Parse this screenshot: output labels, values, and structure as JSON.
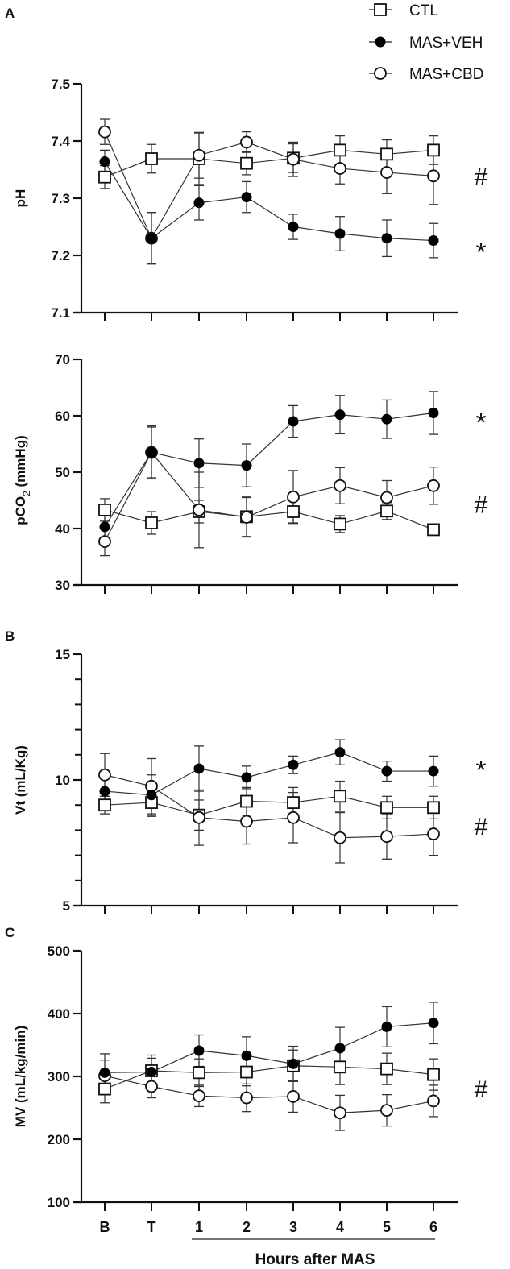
{
  "legend": [
    {
      "label": "CTL",
      "marker": "open-square"
    },
    {
      "label": "MAS+VEH",
      "marker": "filled-circle"
    },
    {
      "label": "MAS+CBD",
      "marker": "open-circle"
    }
  ],
  "panel_letters": [
    "A",
    "B",
    "C"
  ],
  "x_common": {
    "categories": [
      "B",
      "T",
      "1",
      "2",
      "3",
      "4",
      "5",
      "6"
    ],
    "xlabel": "Hours after MAS"
  },
  "chart_data": [
    {
      "type": "line",
      "panel": "A",
      "ylabel": "pH",
      "ylim": [
        7.1,
        7.5
      ],
      "yticks": [
        "7.1",
        "7.2",
        "7.3",
        "7.4",
        "7.5"
      ],
      "significance": [
        {
          "symbol": "#",
          "value": 7.34
        },
        {
          "symbol": "*",
          "value": 7.215
        }
      ],
      "series": [
        {
          "name": "CTL",
          "values": [
            7.337,
            7.369,
            7.369,
            7.361,
            7.37,
            7.384,
            7.377,
            7.384
          ],
          "error": [
            0.02,
            0.025,
            0.045,
            0.02,
            0.025,
            0.025,
            0.025,
            0.025
          ]
        },
        {
          "name": "MAS+VEH",
          "values": [
            7.364,
            7.23,
            7.292,
            7.302,
            7.25,
            7.238,
            7.23,
            7.226
          ],
          "error": [
            0.02,
            0.045,
            0.03,
            0.027,
            0.022,
            0.03,
            0.032,
            0.03
          ]
        },
        {
          "name": "MAS+CBD",
          "values": [
            7.416,
            7.23,
            7.375,
            7.398,
            7.368,
            7.352,
            7.345,
            7.339
          ],
          "error": [
            0.022,
            0.045,
            0.04,
            0.018,
            0.03,
            0.027,
            0.037,
            0.05
          ]
        }
      ]
    },
    {
      "type": "line",
      "panel": "A",
      "ylabel": "pCO2 (mmHg)",
      "ylabel_parts": {
        "main": "pCO",
        "sub": "2",
        "unit": " (mmHg)"
      },
      "ylim": [
        30,
        70
      ],
      "yticks": [
        "30",
        "40",
        "50",
        "60",
        "70"
      ],
      "significance": [
        {
          "symbol": "*",
          "value": 59.7
        },
        {
          "symbol": "#",
          "value": 44.5
        }
      ],
      "series": [
        {
          "name": "CTL",
          "values": [
            43.3,
            41.0,
            43.0,
            42.1,
            43.0,
            40.8,
            43.1,
            39.8
          ],
          "error": [
            2,
            2,
            2,
            3.5,
            2,
            1.5,
            1.5,
            1
          ]
        },
        {
          "name": "MAS+VEH",
          "values": [
            40.3,
            53.5,
            51.6,
            51.2,
            59.0,
            60.2,
            59.4,
            60.5
          ],
          "error": [
            2,
            4.5,
            4.3,
            3.8,
            2.8,
            3.4,
            3.4,
            3.8
          ]
        },
        {
          "name": "MAS+CBD",
          "values": [
            37.7,
            53.5,
            43.3,
            42.0,
            45.6,
            47.6,
            45.5,
            47.6
          ],
          "error": [
            2.5,
            4.7,
            6.7,
            3.5,
            4.7,
            3.2,
            3,
            3.3
          ]
        }
      ]
    },
    {
      "type": "line",
      "panel": "B",
      "ylabel": "Vt (mL/Kg)",
      "ylim": [
        5,
        15
      ],
      "yticks": [
        "5",
        "10",
        "15"
      ],
      "significance": [
        {
          "symbol": "*",
          "value": 10.6
        },
        {
          "symbol": "#",
          "value": 8.2
        }
      ],
      "series": [
        {
          "name": "CTL",
          "values": [
            9.0,
            9.1,
            8.6,
            9.15,
            9.1,
            9.35,
            8.9,
            8.9
          ],
          "error": [
            0.35,
            0.55,
            0.6,
            0.55,
            0.6,
            0.6,
            0.45,
            0.45
          ]
        },
        {
          "name": "MAS+VEH",
          "values": [
            9.55,
            9.4,
            10.45,
            10.1,
            10.6,
            11.1,
            10.35,
            10.35
          ],
          "error": [
            0.5,
            0.8,
            0.9,
            0.45,
            0.35,
            0.5,
            0.4,
            0.6
          ]
        },
        {
          "name": "MAS+CBD",
          "values": [
            10.2,
            9.75,
            8.5,
            8.35,
            8.5,
            7.7,
            7.75,
            7.85
          ],
          "error": [
            0.85,
            1.1,
            1.1,
            0.9,
            1.0,
            1.0,
            0.9,
            0.85
          ]
        }
      ]
    },
    {
      "type": "line",
      "panel": "C",
      "ylabel": "MV (mL/kg/min)",
      "ylim": [
        100,
        500
      ],
      "yticks": [
        "100",
        "200",
        "300",
        "400",
        "500"
      ],
      "significance": [
        {
          "symbol": "#",
          "value": 282
        }
      ],
      "series": [
        {
          "name": "CTL",
          "values": [
            280,
            309,
            306,
            307,
            317,
            315,
            312,
            303
          ],
          "error": [
            22,
            25,
            22,
            22,
            25,
            28,
            25,
            25
          ]
        },
        {
          "name": "MAS+VEH",
          "values": [
            306,
            307,
            341,
            333,
            320,
            345,
            379,
            385
          ],
          "error": [
            30,
            22,
            25,
            30,
            28,
            33,
            32,
            33
          ]
        },
        {
          "name": "MAS+CBD",
          "values": [
            301,
            284,
            269,
            266,
            268,
            242,
            246,
            261
          ],
          "error": [
            25,
            18,
            17,
            22,
            25,
            28,
            25,
            25
          ]
        }
      ]
    }
  ]
}
